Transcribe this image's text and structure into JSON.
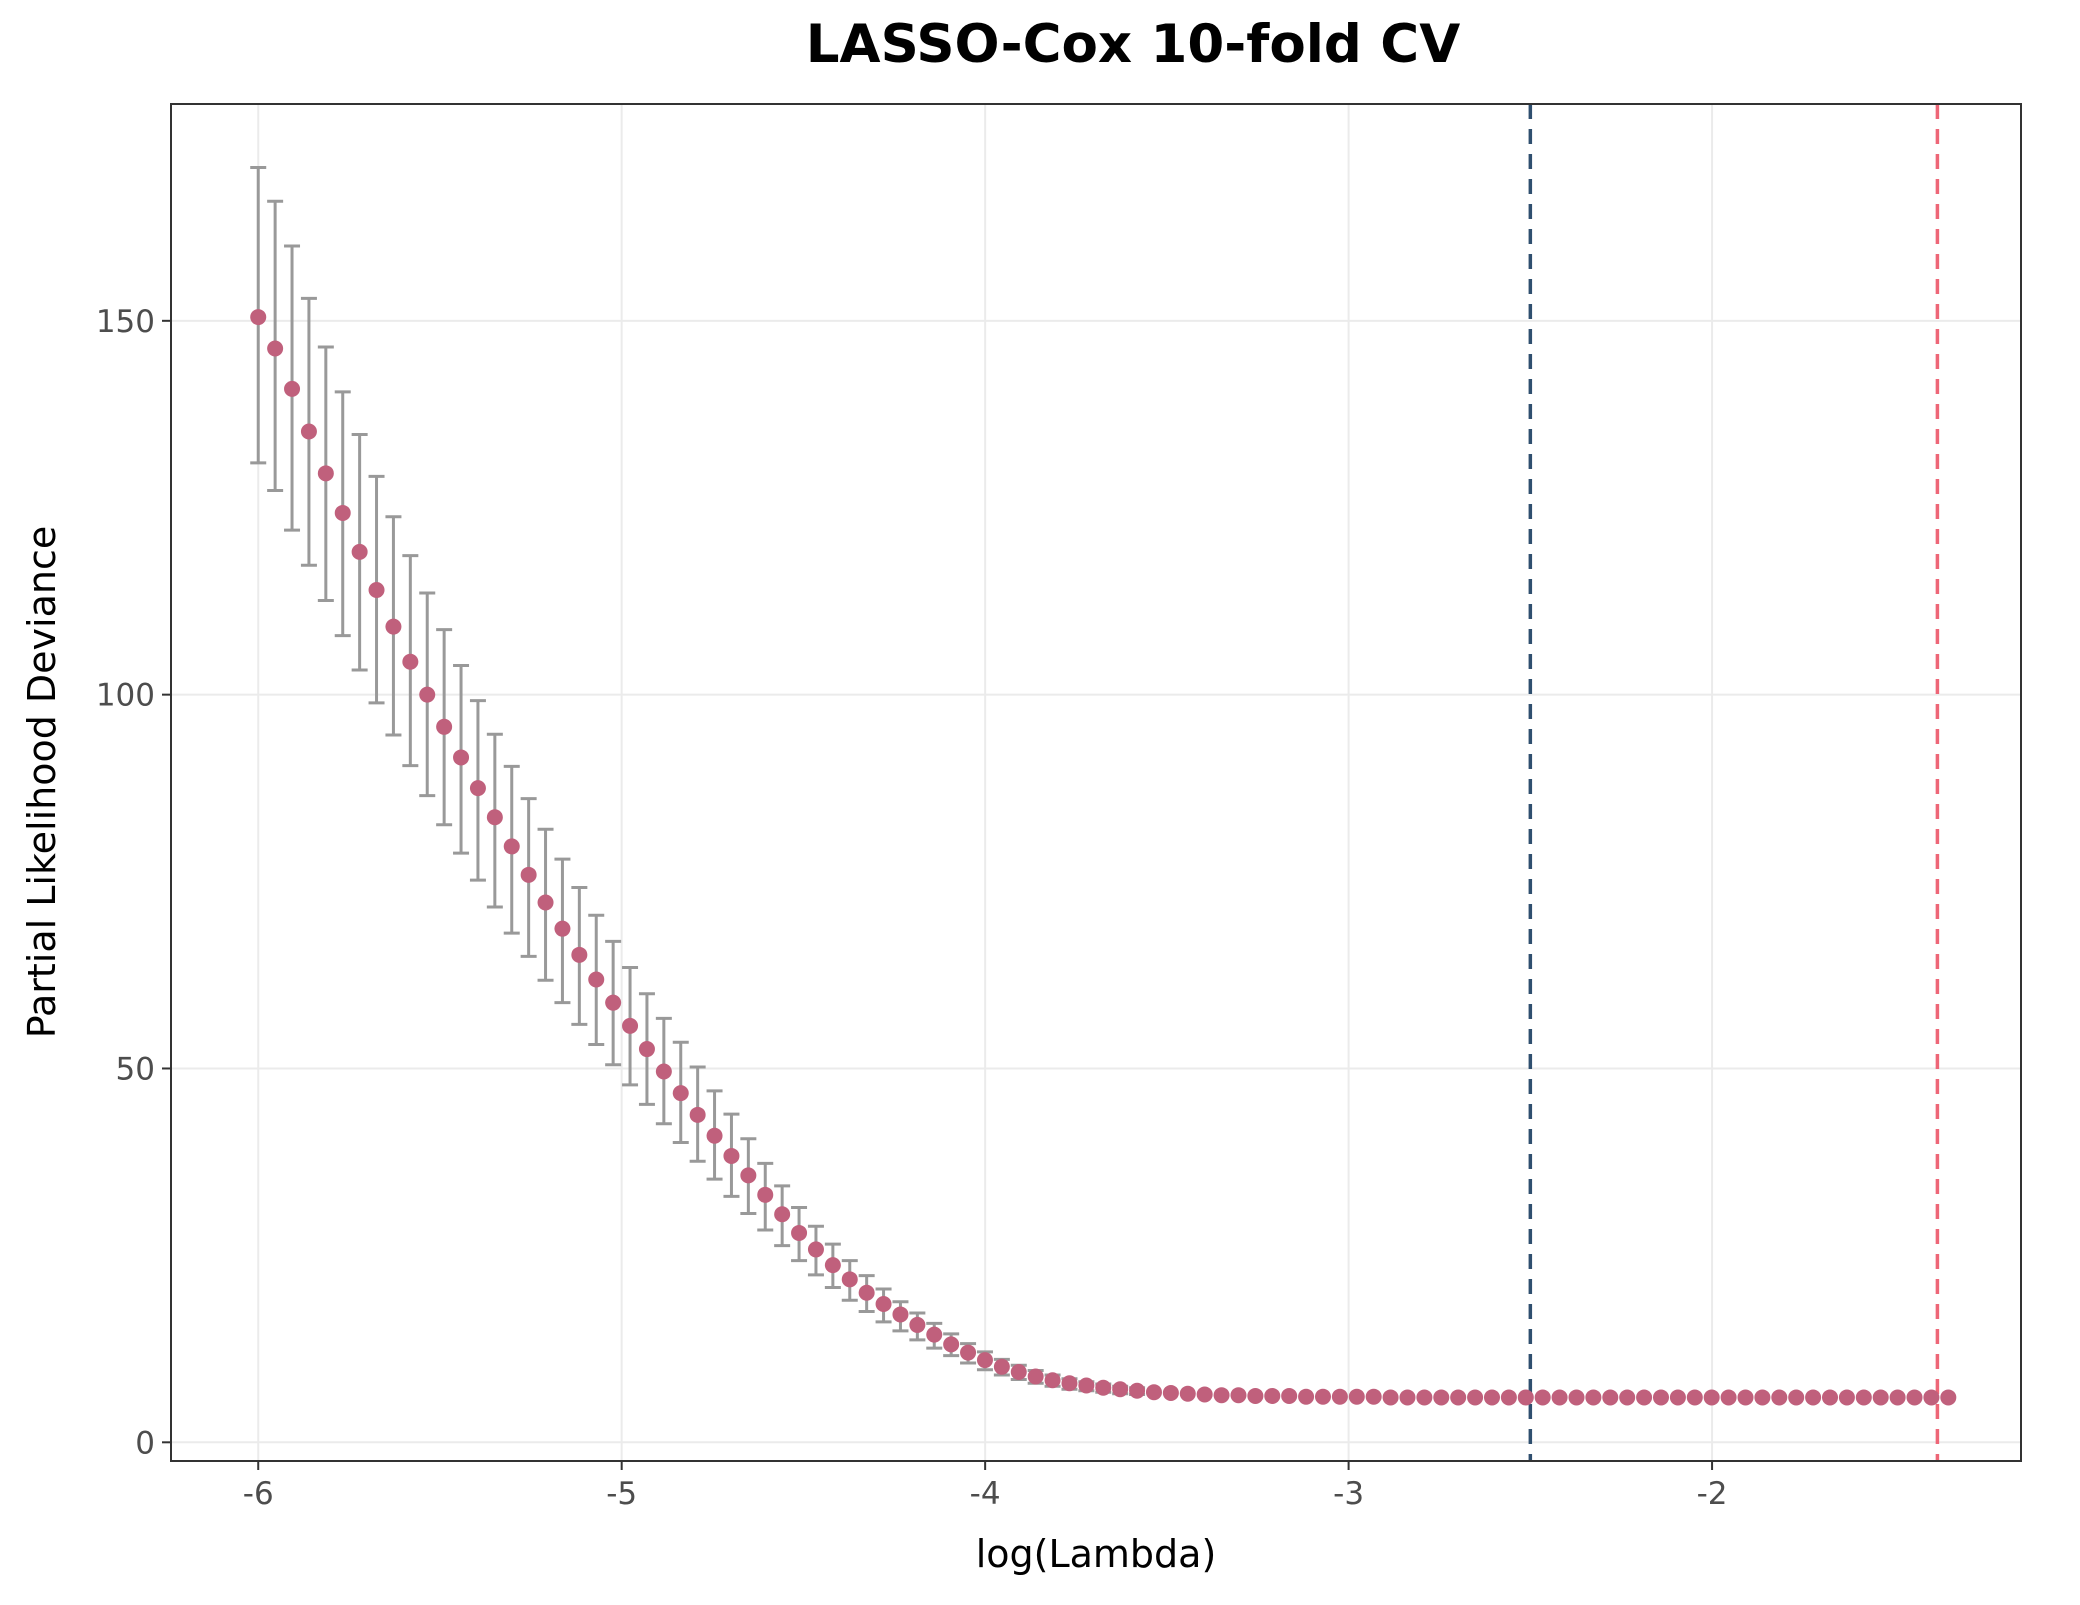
{
  "chart_data": {
    "type": "scatter",
    "title": "LASSO-Cox 10-fold CV",
    "xlabel": "log(Lambda)",
    "ylabel": "Partial Likelihood Deviance",
    "xlim": [
      -6.24,
      -1.15
    ],
    "ylim": [
      -2.5,
      179
    ],
    "x_ticks": [
      -6,
      -5,
      -4,
      -3,
      -2
    ],
    "x_tick_labels": [
      "-6",
      "-5",
      "-4",
      "-3",
      "-2"
    ],
    "y_ticks": [
      0,
      50,
      100,
      150
    ],
    "y_tick_labels": [
      "0",
      "50",
      "100",
      "150"
    ],
    "grid": true,
    "legend": "none",
    "log_lambda_start": -6.0,
    "log_lambda_step": 0.0465,
    "deviance": [
      150.5,
      146.3,
      140.9,
      135.2,
      129.6,
      124.3,
      119.1,
      114.0,
      109.1,
      104.4,
      100.0,
      95.7,
      91.6,
      87.5,
      83.6,
      79.7,
      75.9,
      72.2,
      68.7,
      65.2,
      61.9,
      58.8,
      55.7,
      52.6,
      49.6,
      46.7,
      43.8,
      41.0,
      38.3,
      35.7,
      33.1,
      30.5,
      28.0,
      25.8,
      23.7,
      21.8,
      20.0,
      18.5,
      17.1,
      15.7,
      14.4,
      13.1,
      12.0,
      11.0,
      10.1,
      9.4,
      8.8,
      8.3,
      7.9,
      7.6,
      7.3,
      7.1,
      6.9,
      6.7,
      6.6,
      6.5,
      6.4,
      6.3,
      6.3,
      6.2,
      6.2,
      6.2,
      6.1,
      6.1,
      6.1,
      6.1,
      6.1,
      6.0,
      6.0,
      6.0,
      6.0,
      6.0,
      6.0,
      6.0,
      6.0,
      6.0,
      6.0,
      6.0,
      6.0,
      6.0,
      6.0,
      6.0,
      6.0,
      6.0,
      6.0,
      6.0,
      6.0,
      6.0,
      6.0,
      6.0,
      6.0,
      6.0,
      6.0,
      6.0,
      6.0,
      6.0,
      6.0,
      6.0,
      6.0,
      6.0,
      6.0
    ],
    "error_upper": [
      170.5,
      166.0,
      160.0,
      153.0,
      146.5,
      140.5,
      134.8,
      129.2,
      123.8,
      118.6,
      113.6,
      108.7,
      103.9,
      99.2,
      94.7,
      90.4,
      86.1,
      82.0,
      78.0,
      74.2,
      70.5,
      67.0,
      63.5,
      60.0,
      56.7,
      53.5,
      50.2,
      47.0,
      43.9,
      40.6,
      37.3,
      34.3,
      31.4,
      28.9,
      26.5,
      24.3,
      22.3,
      20.5,
      18.8,
      17.3,
      15.9,
      14.5,
      13.2,
      12.1,
      11.1,
      10.3,
      9.6,
      9.0,
      8.5,
      8.1,
      7.8,
      7.5,
      7.3
    ],
    "error_lower": [
      131.0,
      127.3,
      122.0,
      117.3,
      112.6,
      107.9,
      103.3,
      98.9,
      94.6,
      90.5,
      86.5,
      82.6,
      78.8,
      75.2,
      71.6,
      68.1,
      65.0,
      61.8,
      58.8,
      55.9,
      53.2,
      50.5,
      47.8,
      45.2,
      42.6,
      40.1,
      37.6,
      35.2,
      32.9,
      30.6,
      28.4,
      26.3,
      24.3,
      22.4,
      20.7,
      19.0,
      17.5,
      16.1,
      14.9,
      13.7,
      12.6,
      11.6,
      10.6,
      9.7,
      9.0,
      8.4,
      7.9,
      7.5,
      7.1,
      6.9,
      6.7,
      6.5,
      6.4
    ],
    "vlines": [
      {
        "x": -2.5,
        "color": "#2f4f6f",
        "style": "dashed"
      },
      {
        "x": -1.38,
        "color": "#ee6677",
        "style": "dashed"
      }
    ],
    "point_color": "#c0607c",
    "errorbar_color": "#999999"
  }
}
